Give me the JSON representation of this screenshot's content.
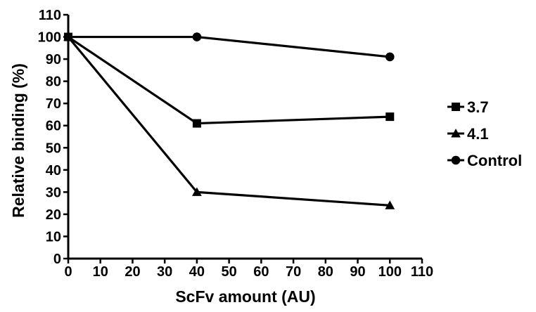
{
  "chart_data": {
    "type": "line",
    "title": "",
    "xlabel": "ScFv amount (AU)",
    "ylabel": "Relative binding (%)",
    "xlim": [
      0,
      110
    ],
    "ylim": [
      0,
      110
    ],
    "xticks": [
      0,
      10,
      20,
      30,
      40,
      50,
      60,
      70,
      80,
      90,
      100,
      110
    ],
    "yticks": [
      0,
      10,
      20,
      30,
      40,
      50,
      60,
      70,
      80,
      90,
      100,
      110
    ],
    "grid": false,
    "legend_position": "right",
    "series": [
      {
        "name": "3.7",
        "marker": "square",
        "color": "#000000",
        "x": [
          0,
          40,
          100
        ],
        "y": [
          100,
          61,
          64
        ]
      },
      {
        "name": "4.1",
        "marker": "triangle",
        "color": "#000000",
        "x": [
          0,
          40,
          100
        ],
        "y": [
          100,
          30,
          24
        ]
      },
      {
        "name": "Control",
        "marker": "circle",
        "color": "#000000",
        "x": [
          0,
          40,
          100
        ],
        "y": [
          100,
          100,
          91
        ]
      }
    ]
  }
}
